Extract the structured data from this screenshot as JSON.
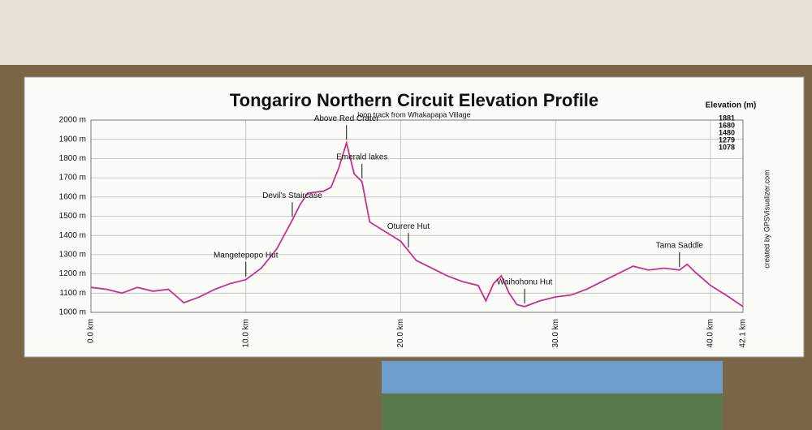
{
  "chart_data": {
    "type": "line",
    "title": "Tongariro Northern Circuit Elevation Profile",
    "subtitle": "loop track from Whakapapa Village",
    "credit": "created by GPSVisualizer.com",
    "legend": {
      "title": "Elevation (m)",
      "entries": [
        {
          "value": 1881,
          "color": "#c8308c"
        },
        {
          "value": 1680,
          "color": "#2a44c8"
        },
        {
          "value": 1480,
          "color": "#2a9a2a"
        },
        {
          "value": 1279,
          "color": "#c0b820"
        },
        {
          "value": 1078,
          "color": "#e03a1e"
        }
      ]
    },
    "x": [
      0,
      1,
      2,
      3,
      4,
      5,
      6,
      7,
      8,
      9,
      10,
      11,
      12,
      13,
      13.5,
      14,
      15,
      15.5,
      16,
      16.5,
      17,
      17.5,
      18,
      19,
      20,
      20.5,
      21,
      22,
      23,
      24,
      25,
      25.5,
      26,
      26.5,
      27,
      27.5,
      28,
      29,
      30,
      31,
      32,
      33,
      34,
      35,
      36,
      37,
      38,
      38.5,
      39,
      40,
      41,
      42.1
    ],
    "values": [
      1130,
      1120,
      1100,
      1130,
      1110,
      1120,
      1050,
      1080,
      1120,
      1150,
      1170,
      1230,
      1330,
      1480,
      1560,
      1620,
      1630,
      1650,
      1750,
      1881,
      1720,
      1680,
      1470,
      1420,
      1370,
      1320,
      1270,
      1230,
      1190,
      1160,
      1140,
      1060,
      1150,
      1190,
      1100,
      1040,
      1030,
      1060,
      1080,
      1090,
      1120,
      1160,
      1200,
      1240,
      1220,
      1230,
      1220,
      1250,
      1210,
      1140,
      1090,
      1030
    ],
    "annotations": [
      {
        "label": "Mangetepopo Hut",
        "x": 10
      },
      {
        "label": "Devil's Staircase",
        "x": 13
      },
      {
        "label": "Above Red Crater",
        "x": 16.5
      },
      {
        "label": "Emerald lakes",
        "x": 17.5
      },
      {
        "label": "Oturere Hut",
        "x": 20.5
      },
      {
        "label": "Waihohonu Hut",
        "x": 28
      },
      {
        "label": "Tama Saddle",
        "x": 38
      }
    ],
    "xlim": [
      0,
      42.1
    ],
    "xticks": [
      {
        "value": 0,
        "label": "0.0 km"
      },
      {
        "value": 10,
        "label": "10.0 km"
      },
      {
        "value": 20,
        "label": "20.0 km"
      },
      {
        "value": 30,
        "label": "30.0 km"
      },
      {
        "value": 40,
        "label": "40.0 km"
      },
      {
        "value": 42.1,
        "label": "42.1 km"
      }
    ],
    "ylim": [
      1000,
      2000
    ],
    "yticks": [
      {
        "value": 1000,
        "label": "1000 m"
      },
      {
        "value": 1100,
        "label": "1100 m"
      },
      {
        "value": 1200,
        "label": "1200 m"
      },
      {
        "value": 1300,
        "label": "1300 m"
      },
      {
        "value": 1400,
        "label": "1400 m"
      },
      {
        "value": 1500,
        "label": "1500 m"
      },
      {
        "value": 1600,
        "label": "1600 m"
      },
      {
        "value": 1700,
        "label": "1700 m"
      },
      {
        "value": 1800,
        "label": "1800 m"
      },
      {
        "value": 1900,
        "label": "1900 m"
      },
      {
        "value": 2000,
        "label": "2000 m"
      }
    ],
    "grid": true
  }
}
